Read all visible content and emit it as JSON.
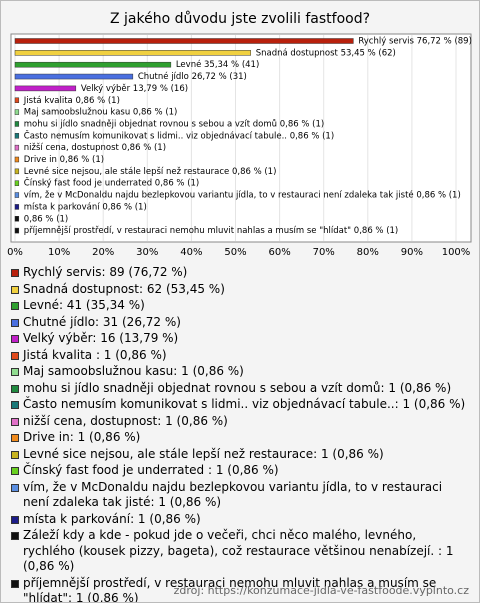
{
  "chart_data": {
    "type": "barh",
    "title": "Z jakého důvodu jste zvolili fastfood?",
    "values": [
      76.72,
      53.45,
      35.34,
      26.72,
      13.79,
      0.86,
      0.86,
      0.86,
      0.86,
      0.86,
      0.86,
      0.86,
      0.86,
      0.86,
      0.86,
      0.86,
      0.86
    ],
    "value_labels": [
      "Rychlý servis 76,72 % (89)",
      "Snadná dostupnost 53,45 % (62)",
      "Levné 35,34 % (41)",
      "Chutné jídlo 26,72 % (31)",
      "Velký výběr 13,79 % (16)",
      "Jistá kvalita  0,86 % (1)",
      "Maj samoobslužnou kasu 0,86 % (1)",
      "mohu si jídlo snadněji objednat rovnou s sebou a vzít domů 0,86 % (1)",
      "Často nemusím komunikovat s lidmi.. viz objednávací tabule.. 0,86 % (1)",
      "nižší cena, dostupnost 0,86 % (1)",
      "Drive in 0,86 % (1)",
      "Levné sice nejsou, ale stále lepší než restaurace 0,86 % (1)",
      "Čínský fast food je underrated  0,86 % (1)",
      "vím, že v McDonaldu najdu bezlepkovou variantu jídla, to v restauraci není zdaleka tak jisté 0,86 % (1)",
      "místa k parkování 0,86 % (1)",
      "0,86 % (1)",
      "příjemnější prostředí, v restauraci nemohu mluvit nahlas a musím se \"hlídat\" 0,86 % (1)"
    ],
    "colors": [
      "#b8200c",
      "#f0d040",
      "#30a030",
      "#4a6fe0",
      "#c020c8",
      "#e04a1c",
      "#90dc90",
      "#208a40",
      "#1a7878",
      "#e070c8",
      "#f08a1c",
      "#c8b420",
      "#68d020",
      "#5a8ee0",
      "#1c1c88",
      "#101010",
      "#101010"
    ],
    "legend": [
      "Rychlý servis: 89 (76,72 %)",
      "Snadná dostupnost: 62 (53,45 %)",
      "Levné: 41 (35,34 %)",
      "Chutné jídlo: 31 (26,72 %)",
      "Velký výběr: 16 (13,79 %)",
      "Jistá kvalita : 1 (0,86 %)",
      "Maj samoobslužnou kasu: 1 (0,86 %)",
      "mohu si jídlo snadněji objednat rovnou s sebou a vzít domů: 1 (0,86 %)",
      "Často nemusím komunikovat s lidmi.. viz objednávací tabule..: 1 (0,86 %)",
      "nižší cena, dostupnost: 1 (0,86 %)",
      "Drive in: 1 (0,86 %)",
      "Levné sice nejsou, ale stále lepší než restaurace: 1 (0,86 %)",
      "Čínský fast food je underrated : 1 (0,86 %)",
      "vím, že v McDonaldu najdu bezlepkovou variantu jídla, to v restauraci není zdaleka tak jisté: 1 (0,86 %)",
      "místa k parkování: 1 (0,86 %)",
      "Záleží kdy a kde - pokud jde o večeři, chci něco malého, levného, rychlého (kousek pizzy, bageta), což restaurace většinou nenabízejí. : 1 (0,86 %)",
      "příjemnější prostředí, v restauraci nemohu mluvit nahlas a musím se \"hlídat\": 1 (0,86 %)"
    ],
    "xlim": [
      0,
      100
    ],
    "xticks": [
      {
        "value": 0,
        "label": "0%"
      },
      {
        "value": 10,
        "label": "10%"
      },
      {
        "value": 20,
        "label": "20%"
      },
      {
        "value": 30,
        "label": "30%"
      },
      {
        "value": 40,
        "label": "40%"
      },
      {
        "value": 50,
        "label": "50%"
      },
      {
        "value": 60,
        "label": "60%"
      },
      {
        "value": 70,
        "label": "70%"
      },
      {
        "value": 80,
        "label": "80%"
      },
      {
        "value": 90,
        "label": "90%"
      },
      {
        "value": 100,
        "label": "100%"
      }
    ],
    "grid": true,
    "source": "zdroj: https://konzumace-jidla-ve-fastfoode.vyplnto.cz"
  }
}
